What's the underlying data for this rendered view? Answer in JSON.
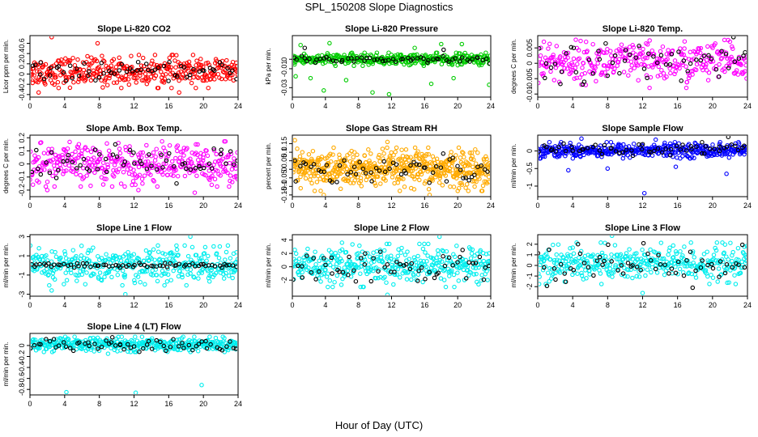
{
  "figure": {
    "title": "SPL_150208  Slope Diagnostics",
    "xlabel": "Hour of Day (UTC)"
  },
  "chart_data": [
    {
      "type": "scatter",
      "title": "Slope Li-820 CO2",
      "ylabel": "Licor ppm per min.",
      "xlim": [
        0,
        24
      ],
      "ylim": [
        -0.45,
        0.75
      ],
      "xticks": [
        0,
        4,
        8,
        12,
        16,
        20,
        24
      ],
      "yticks": [
        -0.4,
        -0.2,
        0.0,
        0.2,
        0.4,
        0.6
      ],
      "series": [
        {
          "color": "#ff0000",
          "x_range": [
            0,
            24
          ],
          "center": 0.05,
          "spread": 0.14,
          "count": 380,
          "outliers": [
            {
              "x": 2.5,
              "y": 0.72
            },
            {
              "x": 7.8,
              "y": 0.6
            },
            {
              "x": 1.0,
              "y": -0.36
            },
            {
              "x": 17.2,
              "y": -0.36
            }
          ]
        },
        {
          "color": "#000000",
          "x_range": [
            0,
            24
          ],
          "center": 0.05,
          "spread": 0.08,
          "count": 60,
          "outliers": []
        }
      ]
    },
    {
      "type": "scatter",
      "title": "Slope Li-820 Pressure",
      "ylabel": "kPa per min.",
      "xlim": [
        0,
        24
      ],
      "ylim": [
        -0.04,
        0.025
      ],
      "xticks": [
        0,
        4,
        8,
        12,
        16,
        20,
        24
      ],
      "yticks": [
        -0.03,
        -0.01,
        0.0
      ],
      "series": [
        {
          "color": "#00cc00",
          "x_range": [
            0,
            24
          ],
          "center": 0.0,
          "spread": 0.003,
          "count": 380,
          "outliers": [
            {
              "x": 0.4,
              "y": -0.018
            },
            {
              "x": 2.2,
              "y": -0.02
            },
            {
              "x": 3.8,
              "y": -0.033
            },
            {
              "x": 6.5,
              "y": -0.022
            },
            {
              "x": 16.8,
              "y": -0.026
            },
            {
              "x": 19.5,
              "y": -0.02
            },
            {
              "x": 23.8,
              "y": -0.027
            },
            {
              "x": 11.7,
              "y": -0.037
            },
            {
              "x": 9.7,
              "y": -0.035
            },
            {
              "x": 1.0,
              "y": 0.015
            },
            {
              "x": 4.5,
              "y": 0.017
            },
            {
              "x": 14.8,
              "y": 0.012
            },
            {
              "x": 18.0,
              "y": 0.016
            },
            {
              "x": 20.5,
              "y": 0.016
            }
          ]
        },
        {
          "color": "#000000",
          "x_range": [
            0,
            24
          ],
          "center": 0.0,
          "spread": 0.002,
          "count": 60,
          "outliers": [
            {
              "x": 1.5,
              "y": 0.012
            },
            {
              "x": 18.3,
              "y": 0.01
            }
          ]
        }
      ]
    },
    {
      "type": "scatter",
      "title": "Slope Li-820 Temp.",
      "ylabel": "degrees C per min.",
      "xlim": [
        0,
        24
      ],
      "ylim": [
        -0.011,
        0.009
      ],
      "xticks": [
        0,
        4,
        8,
        12,
        16,
        20,
        24
      ],
      "yticks": [
        -0.01,
        -0.005,
        0.0,
        0.005
      ],
      "series": [
        {
          "color": "#ff00ff",
          "x_range": [
            0,
            24
          ],
          "center": 0.0003,
          "spread": 0.0032,
          "count": 340,
          "outliers": [
            {
              "x": 0.7,
              "y": 0.007
            },
            {
              "x": 12.8,
              "y": -0.008
            },
            {
              "x": 22.0,
              "y": 0.007
            },
            {
              "x": 17.0,
              "y": -0.008
            }
          ]
        },
        {
          "color": "#000000",
          "x_range": [
            0,
            24
          ],
          "center": 0.0,
          "spread": 0.003,
          "count": 55,
          "outliers": [
            {
              "x": 22.4,
              "y": 0.0085
            }
          ]
        }
      ]
    },
    {
      "type": "scatter",
      "title": "Slope Amb. Box Temp.",
      "ylabel": "degrees C per min.",
      "xlim": [
        0,
        24
      ],
      "ylim": [
        -0.25,
        0.22
      ],
      "xticks": [
        0,
        4,
        8,
        12,
        16,
        20,
        24
      ],
      "yticks": [
        -0.2,
        -0.1,
        0.0,
        0.1,
        0.2
      ],
      "series": [
        {
          "color": "#ff00ff",
          "x_range": [
            0,
            24
          ],
          "center": 0.0,
          "spread": 0.075,
          "count": 380,
          "outliers": [
            {
              "x": 2.0,
              "y": -0.2
            },
            {
              "x": 10.2,
              "y": 0.16
            },
            {
              "x": 19.0,
              "y": -0.22
            },
            {
              "x": 12.5,
              "y": -0.2
            }
          ]
        },
        {
          "color": "#000000",
          "x_range": [
            0,
            24
          ],
          "center": 0.0,
          "spread": 0.065,
          "count": 60,
          "outliers": []
        }
      ]
    },
    {
      "type": "scatter",
      "title": "Slope Gas Stream RH",
      "ylabel": "percent per min.",
      "xlim": [
        0,
        24
      ],
      "ylim": [
        -0.16,
        0.2
      ],
      "xticks": [
        0,
        4,
        8,
        12,
        16,
        20,
        24
      ],
      "yticks": [
        -0.15,
        -0.1,
        -0.05,
        0.0,
        0.05,
        0.1,
        0.15
      ],
      "series": [
        {
          "color": "#ffaa00",
          "x_range": [
            0,
            24
          ],
          "center": 0.0,
          "spread": 0.055,
          "count": 560,
          "outliers": [
            {
              "x": 0.3,
              "y": 0.17
            },
            {
              "x": 3.8,
              "y": -0.15
            },
            {
              "x": 11.5,
              "y": 0.16
            },
            {
              "x": 16.6,
              "y": -0.15
            }
          ]
        },
        {
          "color": "#000000",
          "x_range": [
            0,
            24
          ],
          "center": 0.0,
          "spread": 0.04,
          "count": 60,
          "outliers": []
        }
      ]
    },
    {
      "type": "scatter",
      "title": "Slope Sample Flow",
      "ylabel": "ml/min per min.",
      "xlim": [
        0,
        24
      ],
      "ylim": [
        -1.3,
        0.45
      ],
      "xticks": [
        0,
        4,
        8,
        12,
        16,
        20,
        24
      ],
      "yticks": [
        -1.0,
        -0.5,
        0.0
      ],
      "series": [
        {
          "color": "#0000ff",
          "x_range": [
            0,
            24
          ],
          "center": 0.02,
          "spread": 0.1,
          "count": 420,
          "outliers": [
            {
              "x": 3.5,
              "y": -0.55
            },
            {
              "x": 8.0,
              "y": -0.5
            },
            {
              "x": 12.2,
              "y": -1.2
            },
            {
              "x": 15.8,
              "y": -0.45
            },
            {
              "x": 21.6,
              "y": -0.65
            },
            {
              "x": 5.0,
              "y": 0.35
            },
            {
              "x": 13.5,
              "y": 0.32
            }
          ]
        },
        {
          "color": "#000000",
          "x_range": [
            0,
            24
          ],
          "center": 0.05,
          "spread": 0.08,
          "count": 60,
          "outliers": [
            {
              "x": 21.8,
              "y": 0.4
            },
            {
              "x": 18.8,
              "y": 0.25
            }
          ]
        }
      ]
    },
    {
      "type": "scatter",
      "title": "Slope Line 1 Flow",
      "ylabel": "ml/min per min.",
      "xlim": [
        0,
        24
      ],
      "ylim": [
        -3.2,
        3.2
      ],
      "xticks": [
        0,
        4,
        8,
        12,
        16,
        20,
        24
      ],
      "yticks": [
        -3,
        -1,
        1,
        3
      ],
      "series": [
        {
          "color": "#00eeee",
          "x_range": [
            0,
            24
          ],
          "center": 0.0,
          "spread": 0.9,
          "count": 380,
          "outliers": [
            {
              "x": 11.0,
              "y": -3.0
            },
            {
              "x": 18.5,
              "y": 3.0
            },
            {
              "x": 2.5,
              "y": -2.6
            }
          ]
        },
        {
          "color": "#000000",
          "x_range": [
            0,
            24
          ],
          "center": 0.0,
          "spread": 0.12,
          "count": 70,
          "outliers": []
        }
      ]
    },
    {
      "type": "scatter",
      "title": "Slope Line 2 Flow",
      "ylabel": "ml/min per min.",
      "xlim": [
        0,
        24
      ],
      "ylim": [
        -4.4,
        4.8
      ],
      "xticks": [
        0,
        4,
        8,
        12,
        16,
        20,
        24
      ],
      "yticks": [
        -2,
        0,
        2,
        4
      ],
      "series": [
        {
          "color": "#00eeee",
          "x_range": [
            0,
            24
          ],
          "center": 0.2,
          "spread": 1.4,
          "count": 380,
          "outliers": [
            {
              "x": 11.5,
              "y": -4.2
            },
            {
              "x": 17.8,
              "y": 4.5
            },
            {
              "x": 6.0,
              "y": 3.6
            }
          ]
        },
        {
          "color": "#000000",
          "x_range": [
            0,
            24
          ],
          "center": 0.0,
          "spread": 1.2,
          "count": 60,
          "outliers": []
        }
      ]
    },
    {
      "type": "scatter",
      "title": "Slope Line 3 Flow",
      "ylabel": "ml/min per min.",
      "xlim": [
        0,
        24
      ],
      "ylim": [
        -2.9,
        2.9
      ],
      "xticks": [
        0,
        4,
        8,
        12,
        16,
        20,
        24
      ],
      "yticks": [
        -2,
        -1,
        0,
        1,
        2
      ],
      "series": [
        {
          "color": "#00eeee",
          "x_range": [
            0,
            24
          ],
          "center": 0.2,
          "spread": 0.85,
          "count": 380,
          "outliers": [
            {
              "x": 12.0,
              "y": -2.6
            },
            {
              "x": 8.5,
              "y": 2.8
            }
          ]
        },
        {
          "color": "#000000",
          "x_range": [
            0,
            24
          ],
          "center": 0.0,
          "spread": 1.0,
          "count": 60,
          "outliers": []
        }
      ]
    },
    {
      "type": "scatter",
      "title": "Slope Line 4 (LT) Flow",
      "ylabel": "ml/min per min.",
      "xlim": [
        0,
        24
      ],
      "ylim": [
        -0.9,
        0.22
      ],
      "xticks": [
        0,
        4,
        8,
        12,
        16,
        20,
        24
      ],
      "yticks": [
        -0.8,
        -0.6,
        -0.4,
        -0.2,
        0.0
      ],
      "series": [
        {
          "color": "#00eeee",
          "x_range": [
            0,
            24
          ],
          "center": 0.02,
          "spread": 0.06,
          "count": 400,
          "outliers": [
            {
              "x": 4.2,
              "y": -0.85
            },
            {
              "x": 12.2,
              "y": -0.86
            },
            {
              "x": 19.8,
              "y": -0.72
            },
            {
              "x": 9.0,
              "y": -0.15
            }
          ]
        },
        {
          "color": "#000000",
          "x_range": [
            0,
            24
          ],
          "center": 0.0,
          "spread": 0.05,
          "count": 60,
          "outliers": [
            {
              "x": 9.5,
              "y": 0.15
            }
          ]
        }
      ]
    }
  ]
}
